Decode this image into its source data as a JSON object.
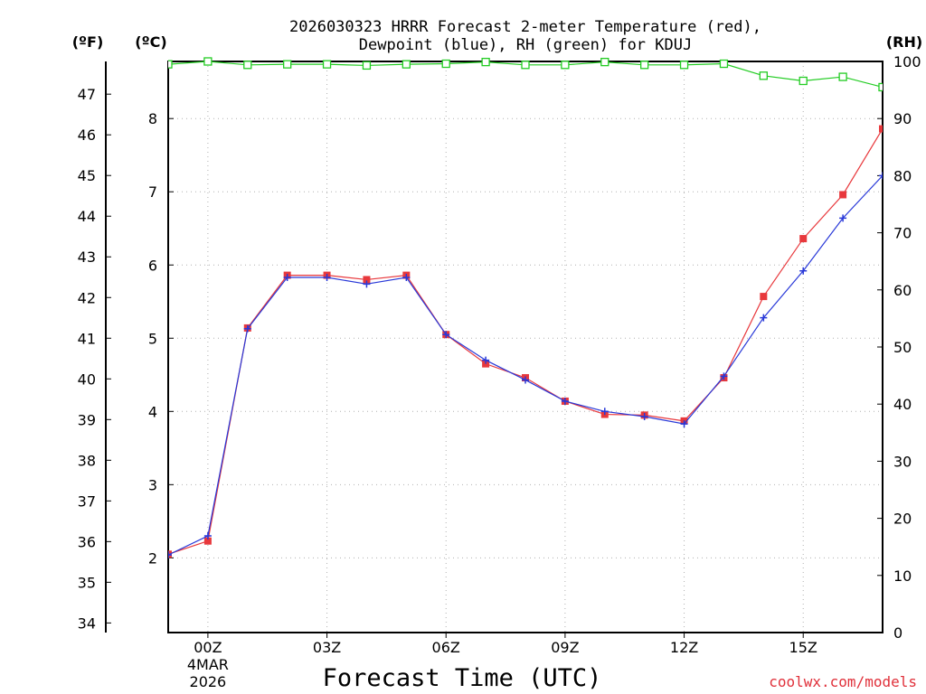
{
  "chart_data": {
    "type": "line",
    "title_line1": "2026030323 HRRR Forecast 2-meter Temperature (red),",
    "title_line2": "Dewpoint (blue), RH (green) for KDUJ",
    "left_outer_unit": "(ºF)",
    "left_inner_unit": "(ºC)",
    "right_unit": "(RH)",
    "xlabel": "Forecast Time (UTC)",
    "credit": "coolwx.com/models",
    "x_hours": [
      -1,
      0,
      1,
      2,
      3,
      4,
      5,
      6,
      7,
      8,
      9,
      10,
      11,
      12,
      13,
      14,
      15,
      16,
      17
    ],
    "xlim": [
      -1,
      17
    ],
    "x_ticks": [
      {
        "hour": 0,
        "label": "00Z",
        "sub1": "4MAR",
        "sub2": "2026"
      },
      {
        "hour": 3,
        "label": "03Z"
      },
      {
        "hour": 6,
        "label": "06Z"
      },
      {
        "hour": 9,
        "label": "09Z"
      },
      {
        "hour": 12,
        "label": "12Z"
      },
      {
        "hour": 15,
        "label": "15Z"
      }
    ],
    "celsius_ylim": [
      0.98,
      8.78
    ],
    "celsius_ticks": [
      2,
      3,
      4,
      5,
      6,
      7,
      8
    ],
    "fahrenheit_ticks": [
      34,
      35,
      36,
      37,
      38,
      39,
      40,
      41,
      42,
      43,
      44,
      45,
      46,
      47
    ],
    "rh_ylim": [
      0,
      100
    ],
    "rh_ticks": [
      0,
      10,
      20,
      30,
      40,
      50,
      60,
      70,
      80,
      90,
      100
    ],
    "series": [
      {
        "name": "Temperature",
        "color": "#e8383c",
        "axis": "celsius",
        "marker": "square",
        "values": [
          2.05,
          2.23,
          5.14,
          5.86,
          5.86,
          5.8,
          5.86,
          5.05,
          4.65,
          4.46,
          4.14,
          3.96,
          3.95,
          3.87,
          4.46,
          5.57,
          6.36,
          6.96,
          7.86
        ]
      },
      {
        "name": "Dewpoint",
        "color": "#2838d8",
        "axis": "celsius",
        "marker": "cross",
        "values": [
          2.04,
          2.3,
          5.13,
          5.83,
          5.83,
          5.74,
          5.83,
          5.05,
          4.7,
          4.43,
          4.14,
          4.0,
          3.93,
          3.83,
          4.48,
          5.28,
          5.92,
          6.64,
          7.22
        ]
      },
      {
        "name": "RH",
        "color": "#22cc22",
        "axis": "rh",
        "marker": "open-square",
        "values": [
          99.5,
          100,
          99.4,
          99.5,
          99.5,
          99.3,
          99.5,
          99.6,
          99.9,
          99.4,
          99.4,
          99.9,
          99.4,
          99.4,
          99.6,
          97.5,
          96.6,
          97.3,
          95.5
        ]
      }
    ]
  }
}
